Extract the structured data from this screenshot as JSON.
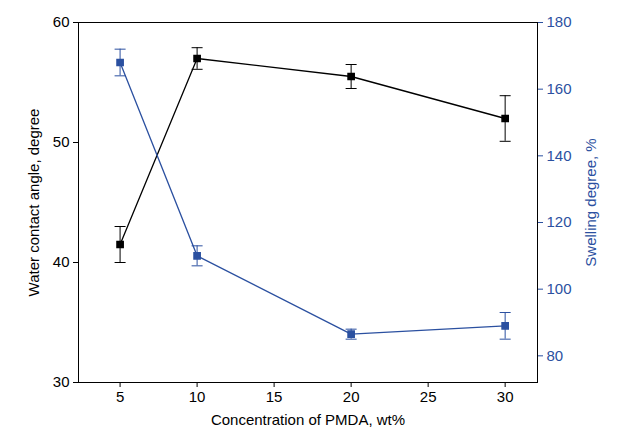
{
  "chart_data": {
    "type": "line",
    "x_label": "Concentration of PMDA, wt%",
    "y_label": "Water contact angle, degree",
    "y2_label": "Swelling degree, %",
    "x": [
      5,
      10,
      20,
      30
    ],
    "xlim": [
      2.3,
      32.1
    ],
    "xticks": [
      5,
      10,
      15,
      20,
      25,
      30
    ],
    "ylim": [
      30,
      60
    ],
    "yticks": [
      30,
      40,
      50,
      60
    ],
    "y2lim": [
      72,
      180
    ],
    "y2ticks": [
      80,
      100,
      120,
      140,
      160,
      180
    ],
    "series": [
      {
        "color": "#000000",
        "marker": "square",
        "line_style": "solid",
        "values": [
          41.5,
          57,
          55.5,
          52
        ],
        "errors": [
          1.5,
          0.9,
          1,
          1.9
        ]
      },
      {
        "color": "#2b50a0",
        "marker": "square",
        "line_style": "solid",
        "axis": "y2",
        "values": [
          168,
          110,
          86.5,
          89
        ],
        "errors": [
          4,
          3,
          1.5,
          4
        ]
      }
    ]
  }
}
